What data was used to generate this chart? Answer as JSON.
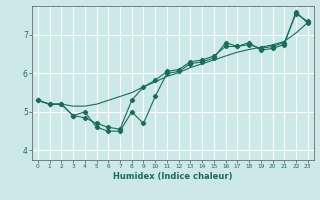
{
  "xlabel": "Humidex (Indice chaleur)",
  "bg_color": "#cce8e8",
  "grid_color": "#ffffff",
  "line_color": "#1a6b5a",
  "x_ticks": [
    0,
    1,
    2,
    3,
    4,
    5,
    6,
    7,
    8,
    9,
    10,
    11,
    12,
    13,
    14,
    15,
    16,
    17,
    18,
    19,
    20,
    21,
    22,
    23
  ],
  "ylim": [
    3.75,
    7.75
  ],
  "xlim": [
    -0.5,
    23.5
  ],
  "line1_x": [
    0,
    1,
    2,
    3,
    4,
    5,
    6,
    7,
    8,
    9,
    10,
    11,
    12,
    13,
    14,
    15,
    16,
    17,
    18,
    19,
    20,
    21,
    22,
    23
  ],
  "line1_y": [
    5.3,
    5.2,
    5.2,
    4.9,
    5.0,
    4.6,
    4.5,
    4.5,
    5.0,
    4.7,
    5.4,
    6.0,
    6.05,
    6.25,
    6.3,
    6.4,
    6.8,
    6.7,
    6.8,
    6.6,
    6.65,
    6.75,
    7.6,
    7.3
  ],
  "line2_x": [
    0,
    1,
    2,
    3,
    4,
    5,
    6,
    7,
    8,
    9,
    10,
    11,
    12,
    13,
    14,
    15,
    16,
    17,
    18,
    19,
    20,
    21,
    22,
    23
  ],
  "line2_y": [
    5.3,
    5.2,
    5.2,
    5.15,
    5.15,
    5.2,
    5.3,
    5.4,
    5.5,
    5.65,
    5.78,
    5.92,
    6.02,
    6.15,
    6.25,
    6.35,
    6.45,
    6.55,
    6.62,
    6.68,
    6.74,
    6.83,
    7.05,
    7.32
  ],
  "line3_x": [
    0,
    1,
    2,
    3,
    4,
    5,
    6,
    7,
    8,
    9,
    10,
    11,
    12,
    13,
    14,
    15,
    16,
    17,
    18,
    19,
    20,
    21,
    22,
    23
  ],
  "line3_y": [
    5.3,
    5.2,
    5.2,
    4.9,
    4.85,
    4.7,
    4.6,
    4.55,
    5.3,
    5.65,
    5.82,
    6.05,
    6.1,
    6.3,
    6.35,
    6.45,
    6.7,
    6.7,
    6.75,
    6.65,
    6.7,
    6.8,
    7.55,
    7.35
  ]
}
